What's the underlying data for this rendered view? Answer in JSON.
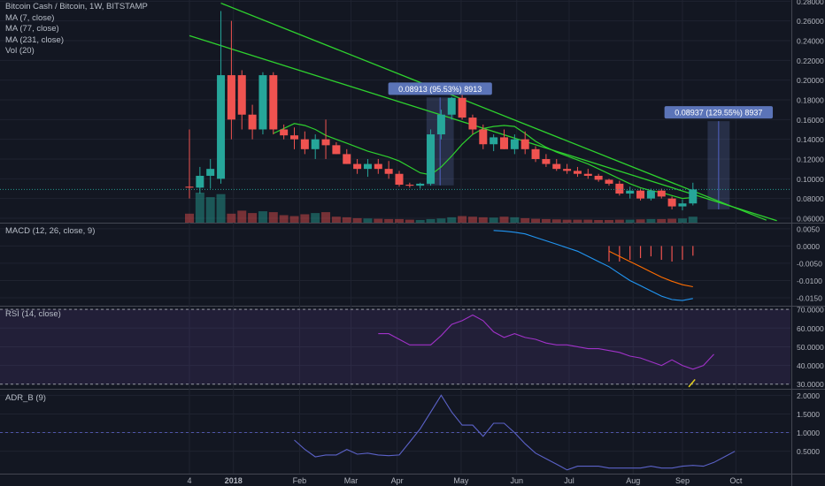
{
  "header": {
    "symbol_line": "Bitcoin Cash / Bitcoin, 1W, BITSTAMP",
    "studies": [
      "MA (7, close)",
      "MA (77, close)",
      "MA (231, close)",
      "Vol (20)"
    ]
  },
  "panes": {
    "macd_title": "MACD (12, 26, close, 9)",
    "rsi_title": "RSI (14, close)",
    "adr_title": "ADR_B (9)"
  },
  "colors": {
    "background": "#131722",
    "bull": "#26a69a",
    "bear": "#ef5350",
    "trendline": "#2ed12e",
    "ma": "#2ed12e",
    "macd": "#2196f3",
    "signal": "#ff6d00",
    "rsi": "#a032c8",
    "adr": "#5b62c8"
  },
  "measures": [
    {
      "label": "0.08913 (95.53%) 8913",
      "from": 0.0933,
      "to": 0.1824
    },
    {
      "label": "0.08937 (129.55%) 8937",
      "from": 0.069,
      "to": 0.1584
    }
  ],
  "chart_data": [
    {
      "type": "candlestick",
      "x_tick_labels": [
        "4",
        "2018",
        "Feb",
        "Mar",
        "Apr",
        "May",
        "Jun",
        "Jul",
        "Aug",
        "Sep",
        "Oct"
      ],
      "y_tick_labels": [
        "0.28000",
        "0.26000",
        "0.24000",
        "0.22000",
        "0.20000",
        "0.18000",
        "0.16000",
        "0.14000",
        "0.12000",
        "0.10000",
        "0.08000",
        "0.06000"
      ],
      "ylim": [
        0.0555,
        0.2812
      ],
      "last_price": 0.0892,
      "candles": [
        [
          0.092,
          0.15,
          0.08,
          0.091
        ],
        [
          0.091,
          0.112,
          0.085,
          0.103
        ],
        [
          0.103,
          0.12,
          0.09,
          0.11
        ],
        [
          0.1,
          0.27,
          0.095,
          0.205
        ],
        [
          0.205,
          0.26,
          0.14,
          0.16
        ],
        [
          0.205,
          0.21,
          0.15,
          0.165
        ],
        [
          0.165,
          0.175,
          0.14,
          0.15
        ],
        [
          0.15,
          0.208,
          0.145,
          0.205
        ],
        [
          0.205,
          0.208,
          0.145,
          0.15
        ],
        [
          0.15,
          0.155,
          0.14,
          0.144
        ],
        [
          0.144,
          0.152,
          0.13,
          0.14
        ],
        [
          0.14,
          0.148,
          0.125,
          0.13
        ],
        [
          0.13,
          0.145,
          0.12,
          0.14
        ],
        [
          0.14,
          0.16,
          0.12,
          0.134
        ],
        [
          0.134,
          0.137,
          0.125,
          0.125
        ],
        [
          0.125,
          0.13,
          0.115,
          0.115
        ],
        [
          0.115,
          0.12,
          0.105,
          0.11
        ],
        [
          0.11,
          0.12,
          0.102,
          0.115
        ],
        [
          0.115,
          0.12,
          0.105,
          0.11
        ],
        [
          0.11,
          0.118,
          0.1,
          0.105
        ],
        [
          0.105,
          0.108,
          0.092,
          0.094
        ],
        [
          0.094,
          0.096,
          0.091,
          0.093
        ],
        [
          0.093,
          0.096,
          0.09,
          0.095
        ],
        [
          0.095,
          0.15,
          0.093,
          0.145
        ],
        [
          0.145,
          0.17,
          0.14,
          0.165
        ],
        [
          0.165,
          0.183,
          0.16,
          0.182
        ],
        [
          0.182,
          0.185,
          0.16,
          0.162
        ],
        [
          0.162,
          0.165,
          0.145,
          0.15
        ],
        [
          0.15,
          0.155,
          0.13,
          0.135
        ],
        [
          0.135,
          0.145,
          0.128,
          0.142
        ],
        [
          0.142,
          0.15,
          0.13,
          0.13
        ],
        [
          0.13,
          0.145,
          0.125,
          0.14
        ],
        [
          0.14,
          0.148,
          0.125,
          0.13
        ],
        [
          0.13,
          0.133,
          0.117,
          0.12
        ],
        [
          0.12,
          0.125,
          0.112,
          0.115
        ],
        [
          0.115,
          0.12,
          0.108,
          0.11
        ],
        [
          0.11,
          0.115,
          0.105,
          0.108
        ],
        [
          0.108,
          0.112,
          0.102,
          0.105
        ],
        [
          0.105,
          0.11,
          0.1,
          0.103
        ],
        [
          0.103,
          0.105,
          0.097,
          0.099
        ],
        [
          0.099,
          0.1,
          0.093,
          0.095
        ],
        [
          0.095,
          0.098,
          0.083,
          0.085
        ],
        [
          0.085,
          0.092,
          0.08,
          0.088
        ],
        [
          0.088,
          0.09,
          0.078,
          0.08
        ],
        [
          0.08,
          0.09,
          0.078,
          0.088
        ],
        [
          0.088,
          0.09,
          0.08,
          0.082
        ],
        [
          0.08,
          0.082,
          0.069,
          0.072
        ],
        [
          0.072,
          0.079,
          0.068,
          0.075
        ],
        [
          0.075,
          0.096,
          0.073,
          0.0892
        ]
      ],
      "volume": [
        0.3,
        1.0,
        0.85,
        0.95,
        0.3,
        0.4,
        0.32,
        0.38,
        0.35,
        0.25,
        0.22,
        0.28,
        0.32,
        0.35,
        0.2,
        0.18,
        0.15,
        0.14,
        0.13,
        0.12,
        0.12,
        0.1,
        0.09,
        0.12,
        0.14,
        0.18,
        0.22,
        0.2,
        0.18,
        0.17,
        0.2,
        0.18,
        0.15,
        0.13,
        0.12,
        0.11,
        0.1,
        0.1,
        0.1,
        0.09,
        0.09,
        0.1,
        0.1,
        0.11,
        0.12,
        0.12,
        0.13,
        0.14,
        0.2
      ],
      "ma_line": [
        null,
        null,
        null,
        null,
        null,
        null,
        null,
        null,
        0.146,
        0.151,
        0.156,
        0.154,
        0.15,
        0.144,
        0.14,
        0.136,
        0.132,
        0.128,
        0.125,
        0.122,
        0.118,
        0.112,
        0.106,
        0.104,
        0.112,
        0.123,
        0.135,
        0.145,
        0.151,
        0.153,
        0.154,
        0.153,
        0.146,
        0.138,
        0.132,
        0.127,
        0.123,
        0.119,
        0.115,
        0.11,
        0.105,
        0.1,
        0.095,
        0.091,
        0.088,
        0.086,
        0.083,
        0.08,
        0.081
      ],
      "trend_lines": [
        [
          [
            3,
            0.278
          ],
          [
            55,
            0.058
          ]
        ],
        [
          [
            0,
            0.245
          ],
          [
            56,
            0.0575
          ]
        ]
      ]
    },
    {
      "type": "line",
      "y_tick_labels": [
        "0.0050",
        "0.0000",
        "-0.0050",
        "-0.0100",
        "-0.0150"
      ],
      "ylim": [
        -0.0173,
        0.0065
      ],
      "start_index": 29,
      "macd": [
        0.0045,
        0.0043,
        0.004,
        0.0035,
        0.0025,
        0.0015,
        0.0005,
        -0.0005,
        -0.0015,
        -0.003,
        -0.0045,
        -0.006,
        -0.008,
        -0.01,
        -0.0115,
        -0.013,
        -0.0145,
        -0.0155,
        -0.0158,
        -0.0152
      ],
      "signal_start_index": 40,
      "signal": [
        -0.0015,
        -0.003,
        -0.0045,
        -0.006,
        -0.0075,
        -0.009,
        -0.0102,
        -0.0112,
        -0.0118
      ],
      "hist_start_index": 40,
      "hist": [
        -0.0045,
        -0.0045,
        -0.004,
        -0.0035,
        -0.003,
        -0.004,
        -0.0045,
        -0.004,
        -0.0028
      ]
    },
    {
      "type": "line",
      "y_tick_labels": [
        "70.0000",
        "60.0000",
        "50.0000",
        "40.0000",
        "30.0000"
      ],
      "ylim": [
        27.5,
        71.5
      ],
      "bands": [
        30,
        70
      ],
      "start_index": 18,
      "values": [
        57,
        57,
        54,
        51,
        51,
        51,
        56,
        62,
        64,
        67,
        64,
        58,
        55,
        57,
        55,
        54,
        52,
        51,
        51,
        50,
        49,
        49,
        48,
        47,
        45,
        44,
        42,
        40,
        43,
        40,
        38,
        40,
        46
      ]
    },
    {
      "type": "line",
      "y_tick_labels": [
        "2.0000",
        "1.5000",
        "1.0000",
        "0.5000"
      ],
      "ylim": [
        -0.1,
        2.15
      ],
      "level": 1.0,
      "start_index": 10,
      "values": [
        0.8,
        0.55,
        0.35,
        0.4,
        0.4,
        0.55,
        0.42,
        0.45,
        0.4,
        0.38,
        0.4,
        0.75,
        1.1,
        1.55,
        2.0,
        1.55,
        1.2,
        1.2,
        0.9,
        1.25,
        1.25,
        1.0,
        0.7,
        0.45,
        0.3,
        0.15,
        0.0,
        0.1,
        0.1,
        0.1,
        0.05,
        0.05,
        0.05,
        0.05,
        0.1,
        0.05,
        0.05,
        0.1,
        0.12,
        0.1,
        0.2,
        0.35,
        0.5
      ]
    }
  ]
}
